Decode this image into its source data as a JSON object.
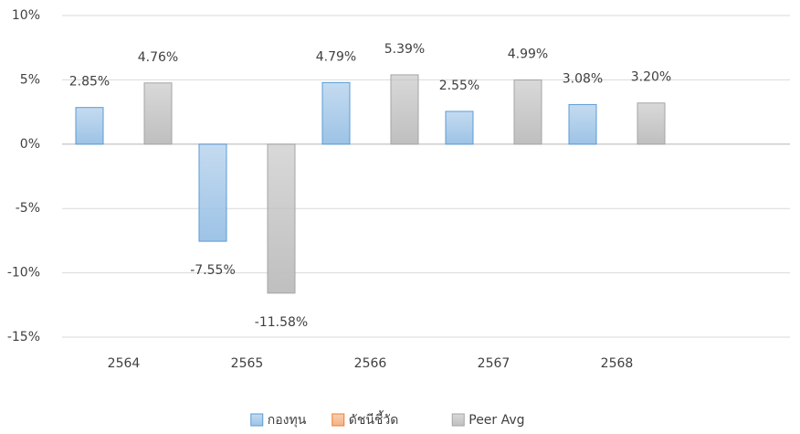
{
  "chart_data": {
    "type": "bar",
    "categories": [
      "2564",
      "2565",
      "2566",
      "2567",
      "2568",
      null
    ],
    "series": [
      {
        "name": "กองทุน",
        "color": "#9dc3e6",
        "values": [
          2.85,
          -7.55,
          4.79,
          2.55,
          3.08,
          null
        ],
        "value_labels": [
          "2.85%",
          "-7.55%",
          "4.79%",
          "2.55%",
          "3.08%",
          null
        ]
      },
      {
        "name": "ดัชนีชี้วัด",
        "color": "#f4b183",
        "values": [
          null,
          null,
          null,
          null,
          null,
          null
        ],
        "value_labels": [
          null,
          null,
          null,
          null,
          null,
          null
        ]
      },
      {
        "name": "Peer Avg",
        "color": "#bfbfbf",
        "values": [
          4.76,
          -11.58,
          5.39,
          4.99,
          3.2,
          null
        ],
        "value_labels": [
          "4.76%",
          "-11.58%",
          "5.39%",
          "4.99%",
          "3.20%",
          null
        ]
      }
    ],
    "ylim": [
      -15,
      10
    ],
    "yticks": [
      {
        "value": -15,
        "label": "-15%"
      },
      {
        "value": -10,
        "label": "-10%"
      },
      {
        "value": -5,
        "label": "-5%"
      },
      {
        "value": 0,
        "label": "0%"
      },
      {
        "value": 5,
        "label": "5%"
      },
      {
        "value": 10,
        "label": "10%"
      }
    ],
    "grid": true,
    "legend": "bottom"
  }
}
